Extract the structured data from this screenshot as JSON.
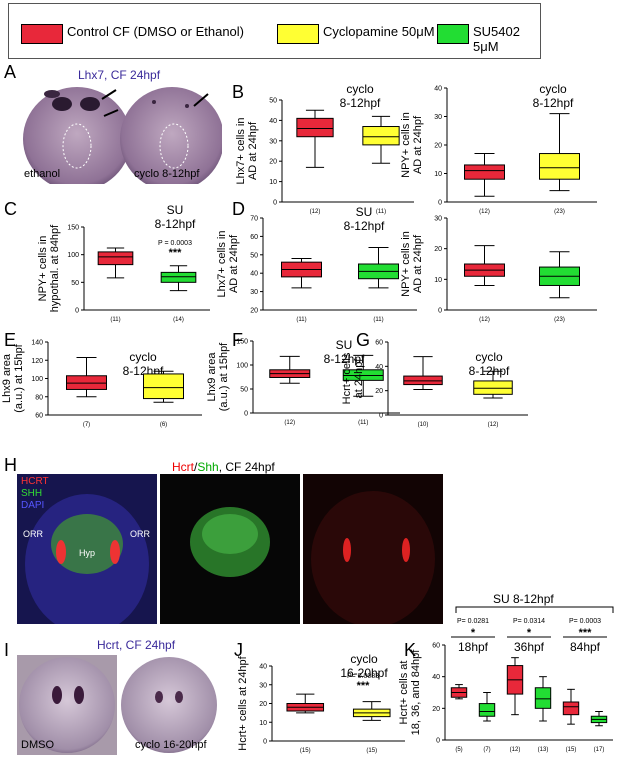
{
  "legend": {
    "items": [
      {
        "label": "Control CF (DMSO or Ethanol)",
        "color": "#e8283a"
      },
      {
        "label": "Cyclopamine 50μM",
        "color": "#ffff33"
      },
      {
        "label": "SU5402 5μM",
        "color": "#22dd33"
      }
    ]
  },
  "panels": {
    "A": {
      "letter": "A",
      "title": "Lhx7, CF 24hpf",
      "left_caption": "ethanol",
      "right_caption": "cyclo 8-12hpf"
    },
    "H": {
      "letter": "H",
      "title_parts": [
        "Hcrt",
        "/",
        "Shh",
        ", CF 24hpf"
      ],
      "channel_labels": [
        "HCRT",
        "SHH",
        "DAPI"
      ],
      "orr_left": "ORR",
      "orr_right": "ORR",
      "hyp": "Hyp"
    },
    "I": {
      "letter": "I",
      "title": "Hcrt, CF 24hpf",
      "left_caption": "DMSO",
      "right_caption": "cyclo 16-20hpf"
    },
    "K": {
      "bracket_title": "SU 8-12hpf"
    }
  },
  "chart_data": [
    {
      "id": "B1",
      "letter": "B",
      "type": "box",
      "ylabel": [
        "Lhx7+ cells in",
        "AD at 24hpf"
      ],
      "ylim": [
        0,
        50
      ],
      "yticks": [
        0,
        10,
        20,
        30,
        40,
        50
      ],
      "treatment": [
        "cyclo",
        "8-12hpf"
      ],
      "annotation": "",
      "stars": "",
      "series": [
        {
          "color": "#e8283a",
          "n": "(12)",
          "min": 17,
          "q1": 32,
          "median": 36,
          "q3": 41,
          "max": 45
        },
        {
          "color": "#ffff33",
          "n": "(11)",
          "min": 19,
          "q1": 28,
          "median": 32,
          "q3": 37,
          "max": 42
        }
      ]
    },
    {
      "id": "B2",
      "letter": "",
      "type": "box",
      "ylabel": [
        "NPY+ cells in",
        "AD at 24hpf"
      ],
      "ylim": [
        0,
        40
      ],
      "yticks": [
        0,
        10,
        20,
        30,
        40
      ],
      "treatment": [
        "cyclo",
        "8-12hpf"
      ],
      "annotation": "",
      "stars": "",
      "series": [
        {
          "color": "#e8283a",
          "n": "(12)",
          "min": 2,
          "q1": 8,
          "median": 11,
          "q3": 13,
          "max": 17
        },
        {
          "color": "#ffff33",
          "n": "(23)",
          "min": 4,
          "q1": 8,
          "median": 12,
          "q3": 17,
          "max": 31
        }
      ]
    },
    {
      "id": "C",
      "letter": "C",
      "type": "box",
      "ylabel": [
        "NPY+ cells in",
        "hypothal. at 84hpf"
      ],
      "ylim": [
        0,
        150
      ],
      "yticks": [
        0,
        50,
        100,
        150
      ],
      "treatment": [
        "SU",
        "8-12hpf"
      ],
      "annotation": "P = 0.0003",
      "stars": "***",
      "series": [
        {
          "color": "#e8283a",
          "n": "(11)",
          "min": 58,
          "q1": 82,
          "median": 96,
          "q3": 105,
          "max": 112
        },
        {
          "color": "#22dd33",
          "n": "(14)",
          "min": 35,
          "q1": 50,
          "median": 60,
          "q3": 68,
          "max": 80
        }
      ]
    },
    {
      "id": "D1",
      "letter": "D",
      "type": "box",
      "ylabel": [
        "Lhx7+ cells in",
        "AD at 24hpf"
      ],
      "ylim": [
        20,
        70
      ],
      "yticks": [
        20,
        30,
        40,
        50,
        60,
        70
      ],
      "treatment": [
        "SU",
        "8-12hpf"
      ],
      "annotation": "",
      "stars": "",
      "series": [
        {
          "color": "#e8283a",
          "n": "(11)",
          "min": 32,
          "q1": 38,
          "median": 42,
          "q3": 46,
          "max": 48
        },
        {
          "color": "#22dd33",
          "n": "(11)",
          "min": 32,
          "q1": 37,
          "median": 41,
          "q3": 45,
          "max": 54
        }
      ]
    },
    {
      "id": "D2",
      "letter": "",
      "type": "box",
      "ylabel": [
        "NPY+ cells in",
        "AD at 24hpf"
      ],
      "ylim": [
        0,
        30
      ],
      "yticks": [
        0,
        10,
        20,
        30
      ],
      "treatment": [],
      "annotation": "",
      "stars": "",
      "series": [
        {
          "color": "#e8283a",
          "n": "(12)",
          "min": 8,
          "q1": 11,
          "median": 13,
          "q3": 15,
          "max": 21
        },
        {
          "color": "#22dd33",
          "n": "(23)",
          "min": 4,
          "q1": 8,
          "median": 11,
          "q3": 14,
          "max": 19
        }
      ]
    },
    {
      "id": "E",
      "letter": "E",
      "type": "box",
      "ylabel": [
        "Lhx9 area",
        "(a.u.) at 15hpf"
      ],
      "ylim": [
        60,
        140
      ],
      "yticks": [
        60,
        80,
        100,
        120,
        140
      ],
      "treatment": [
        "cyclo",
        "8-12hpf"
      ],
      "annotation": "",
      "stars": "",
      "series": [
        {
          "color": "#e8283a",
          "n": "(7)",
          "min": 80,
          "q1": 88,
          "median": 95,
          "q3": 103,
          "max": 123
        },
        {
          "color": "#ffff33",
          "n": "(6)",
          "min": 74,
          "q1": 78,
          "median": 90,
          "q3": 105,
          "max": 108
        }
      ]
    },
    {
      "id": "F",
      "letter": "F",
      "type": "box",
      "ylabel": [
        "Lhx9 area",
        "(a.u.) at 15hpf"
      ],
      "ylim": [
        0,
        150
      ],
      "yticks": [
        0,
        50,
        100,
        150
      ],
      "treatment": [
        "SU",
        "8-12hpf"
      ],
      "annotation": "",
      "stars": "",
      "series": [
        {
          "color": "#e8283a",
          "n": "(12)",
          "min": 62,
          "q1": 74,
          "median": 82,
          "q3": 90,
          "max": 118
        },
        {
          "color": "#22dd33",
          "n": "(11)",
          "min": 35,
          "q1": 68,
          "median": 78,
          "q3": 90,
          "max": 120
        }
      ]
    },
    {
      "id": "G",
      "letter": "G",
      "type": "box",
      "ylabel": [
        "Hcrt+ cells",
        "at 24hpf"
      ],
      "ylim": [
        0,
        60
      ],
      "yticks": [
        0,
        20,
        40,
        60
      ],
      "treatment": [
        "cyclo",
        "8-12hpf"
      ],
      "annotation": "",
      "stars": "",
      "series": [
        {
          "color": "#e8283a",
          "n": "(10)",
          "min": 21,
          "q1": 25,
          "median": 28,
          "q3": 32,
          "max": 48
        },
        {
          "color": "#ffff33",
          "n": "(12)",
          "min": 14,
          "q1": 17,
          "median": 22,
          "q3": 28,
          "max": 36
        }
      ]
    },
    {
      "id": "J",
      "letter": "J",
      "type": "box",
      "ylabel": [
        "Hcrt+ cells at 24hpf"
      ],
      "ylim": [
        0,
        40
      ],
      "yticks": [
        0,
        10,
        20,
        30,
        40
      ],
      "treatment": [
        "cyclo",
        "16-20hpf"
      ],
      "annotation": "P= 0.0083",
      "stars": "***",
      "series": [
        {
          "color": "#e8283a",
          "n": "(15)",
          "min": 15,
          "q1": 16,
          "median": 18,
          "q3": 20,
          "max": 25
        },
        {
          "color": "#ffff33",
          "n": "(15)",
          "min": 11,
          "q1": 13,
          "median": 15,
          "q3": 17,
          "max": 21
        }
      ]
    },
    {
      "id": "K",
      "letter": "K",
      "type": "box",
      "ylabel": [
        "Hcrt+ cells at",
        "18, 36, and 84hpf"
      ],
      "ylim": [
        0,
        60
      ],
      "yticks": [
        0,
        20,
        40,
        60
      ],
      "treatment": [],
      "annotation": "",
      "stars": "",
      "groups": [
        {
          "p": "P= 0.0281",
          "stars": "*",
          "label": "18hpf"
        },
        {
          "p": "P= 0.0314",
          "stars": "*",
          "label": "36hpf"
        },
        {
          "p": "P= 0.0003",
          "stars": "***",
          "label": "84hpf"
        }
      ],
      "series": [
        {
          "color": "#e8283a",
          "n": "(5)",
          "min": 26,
          "q1": 27,
          "median": 30,
          "q3": 33,
          "max": 35
        },
        {
          "color": "#22dd33",
          "n": "(7)",
          "min": 12,
          "q1": 15,
          "median": 18,
          "q3": 23,
          "max": 30
        },
        {
          "color": "#e8283a",
          "n": "(12)",
          "min": 16,
          "q1": 29,
          "median": 38,
          "q3": 47,
          "max": 52
        },
        {
          "color": "#22dd33",
          "n": "(13)",
          "min": 12,
          "q1": 20,
          "median": 26,
          "q3": 33,
          "max": 40
        },
        {
          "color": "#e8283a",
          "n": "(15)",
          "min": 10,
          "q1": 16,
          "median": 21,
          "q3": 24,
          "max": 32
        },
        {
          "color": "#22dd33",
          "n": "(17)",
          "min": 9,
          "q1": 11,
          "median": 13,
          "q3": 15,
          "max": 18
        }
      ]
    }
  ]
}
